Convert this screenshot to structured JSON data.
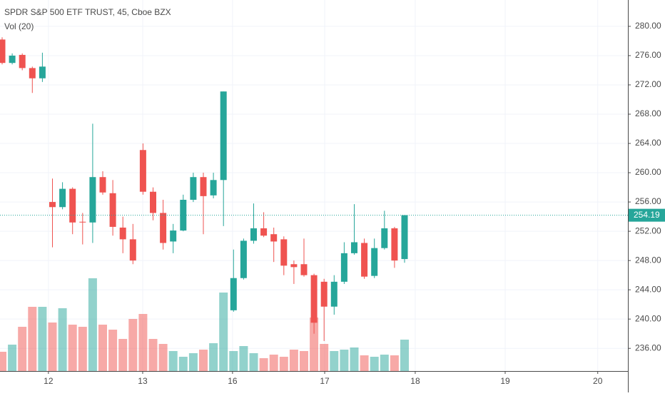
{
  "chart_data": {
    "type": "candlestick",
    "title": "SPDR S&P 500 ETF TRUST, 45, Cboe BZX",
    "subtitle": "Vol (20)",
    "up_color": "#26a69a",
    "down_color": "#ef5350",
    "open": [
      278.2,
      275.0,
      276.1,
      274.3,
      272.9,
      256.0,
      255.3,
      257.8,
      253.3,
      253.2,
      259.4,
      257.2,
      252.5,
      250.9,
      263.1,
      257.4,
      254.5,
      250.6,
      252.1,
      256.3,
      259.4,
      256.9,
      259.0,
      241.2,
      245.6,
      250.7,
      252.4,
      251.6,
      250.9,
      247.5,
      247.5,
      246.0,
      245.1,
      241.7,
      245.1,
      249.0,
      250.4,
      245.9,
      249.7,
      252.4,
      248.2
    ],
    "high": [
      278.5,
      276.3,
      276.3,
      274.5,
      276.4,
      259.2,
      258.7,
      258.0,
      254.5,
      266.7,
      260.2,
      259.0,
      254.0,
      253.0,
      264.0,
      258.0,
      256.3,
      253.0,
      257.0,
      260.0,
      260.0,
      260.0,
      271.1,
      249.5,
      251.0,
      255.8,
      254.6,
      252.5,
      251.3,
      248.0,
      251.0,
      246.2,
      245.5,
      246.0,
      250.5,
      255.7,
      251.0,
      251.0,
      254.8,
      252.6,
      254.19
    ],
    "low": [
      274.8,
      274.8,
      274.0,
      270.9,
      272.4,
      249.8,
      255.0,
      251.6,
      250.2,
      250.4,
      257.0,
      251.4,
      249.0,
      247.5,
      257.0,
      253.5,
      249.5,
      249.0,
      252.0,
      256.0,
      251.6,
      256.5,
      252.7,
      241.0,
      245.4,
      250.3,
      251.2,
      247.8,
      246.0,
      244.8,
      245.8,
      238.0,
      237.0,
      240.6,
      244.8,
      248.8,
      245.5,
      245.6,
      249.5,
      247.0,
      247.7
    ],
    "close": [
      275.0,
      276.0,
      274.3,
      272.9,
      274.5,
      255.3,
      257.8,
      253.2,
      253.2,
      259.4,
      257.3,
      252.6,
      250.9,
      248.0,
      257.4,
      254.5,
      250.4,
      252.1,
      256.3,
      259.4,
      256.8,
      259.0,
      271.1,
      245.6,
      250.7,
      252.4,
      251.4,
      250.6,
      247.3,
      247.1,
      246.0,
      239.5,
      241.7,
      245.1,
      249.0,
      250.5,
      245.8,
      249.7,
      252.4,
      248.0,
      254.19
    ],
    "volume": [
      27,
      37,
      62,
      90,
      90,
      68,
      88,
      65,
      62,
      130,
      65,
      58,
      45,
      73,
      80,
      45,
      38,
      28,
      20,
      25,
      30,
      39,
      110,
      28,
      35,
      25,
      18,
      23,
      20,
      30,
      28,
      75,
      38,
      28,
      30,
      33,
      22,
      20,
      23,
      22,
      44
    ],
    "last_price": {
      "value": 254.19,
      "label": "254.19"
    },
    "ylim": [
      232.9,
      283.6
    ],
    "yticks": [
      {
        "value": 236,
        "label": "236.00"
      },
      {
        "value": 240,
        "label": "240.00"
      },
      {
        "value": 244,
        "label": "244.00"
      },
      {
        "value": 248,
        "label": "248.00"
      },
      {
        "value": 252,
        "label": "252.00"
      },
      {
        "value": 256,
        "label": "256.00"
      },
      {
        "value": 260,
        "label": "260.00"
      },
      {
        "value": 264,
        "label": "264.00"
      },
      {
        "value": 268,
        "label": "268.00"
      },
      {
        "value": 272,
        "label": "272.00"
      },
      {
        "value": 276,
        "label": "276.00"
      },
      {
        "value": 280,
        "label": "280.00"
      }
    ],
    "xticks": [
      {
        "value": 4.6,
        "label": "12"
      },
      {
        "value": 13.97,
        "label": "13"
      },
      {
        "value": 22.9,
        "label": "16"
      },
      {
        "value": 32.06,
        "label": "17"
      },
      {
        "value": 41.06,
        "label": "18"
      },
      {
        "value": 50,
        "label": "19"
      },
      {
        "value": 59.2,
        "label": "20"
      }
    ],
    "grid": true
  }
}
